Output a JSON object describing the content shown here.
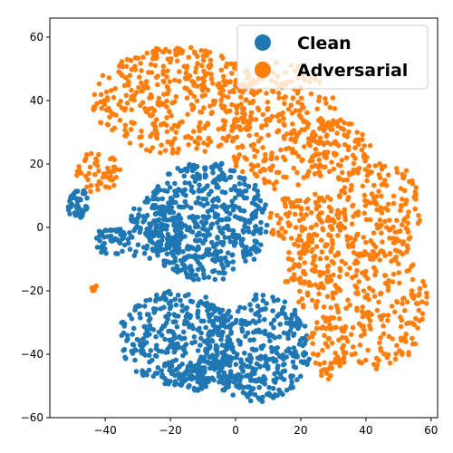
{
  "chart_data": {
    "type": "scatter",
    "title": "",
    "xlabel": "",
    "ylabel": "",
    "xlim": [
      -57,
      62
    ],
    "ylim": [
      -60,
      66
    ],
    "x_ticks": [
      -40,
      -20,
      0,
      20,
      40,
      60
    ],
    "y_ticks": [
      -60,
      -40,
      -20,
      0,
      20,
      40,
      60
    ],
    "x_tick_labels": [
      "−40",
      "−20",
      "0",
      "20",
      "40",
      "60"
    ],
    "y_tick_labels": [
      "−60",
      "−40",
      "−20",
      "0",
      "20",
      "40",
      "60"
    ],
    "grid": false,
    "legend": "top-right",
    "series": [
      {
        "name": "Clean",
        "color": "#1f77b4",
        "clusters": [
          {
            "cx": -9,
            "cy": 2,
            "rx": 19,
            "ry": 19,
            "n": 520
          },
          {
            "cx": -25,
            "cy": -1,
            "rx": 9,
            "ry": 11,
            "n": 120
          },
          {
            "cx": -18,
            "cy": -35,
            "rx": 18,
            "ry": 15,
            "n": 330
          },
          {
            "cx": 7,
            "cy": -38,
            "rx": 16,
            "ry": 17,
            "n": 320
          },
          {
            "cx": -6,
            "cy": -47,
            "rx": 14,
            "ry": 5,
            "n": 110
          },
          {
            "cx": -38,
            "cy": -4,
            "rx": 5,
            "ry": 5,
            "n": 50
          },
          {
            "cx": -48,
            "cy": 7,
            "rx": 3.5,
            "ry": 5,
            "n": 45
          }
        ]
      },
      {
        "name": "Adversarial",
        "color": "#ff7f0e",
        "clusters": [
          {
            "cx": -18,
            "cy": 40,
            "rx": 26,
            "ry": 17,
            "n": 420
          },
          {
            "cx": 14,
            "cy": 32,
            "rx": 18,
            "ry": 20,
            "n": 260
          },
          {
            "cx": 32,
            "cy": 24,
            "rx": 10,
            "ry": 10,
            "n": 90
          },
          {
            "cx": 44,
            "cy": 5,
            "rx": 13,
            "ry": 17,
            "n": 180
          },
          {
            "cx": 44,
            "cy": -25,
            "rx": 15,
            "ry": 20,
            "n": 200
          },
          {
            "cx": 24,
            "cy": -14,
            "rx": 9,
            "ry": 12,
            "n": 110
          },
          {
            "cx": 22,
            "cy": 2,
            "rx": 12,
            "ry": 9,
            "n": 110
          },
          {
            "cx": 28,
            "cy": -38,
            "rx": 6,
            "ry": 10,
            "n": 60
          },
          {
            "cx": -42,
            "cy": 17,
            "rx": 7,
            "ry": 7,
            "n": 50
          },
          {
            "cx": -44,
            "cy": -19,
            "rx": 1.5,
            "ry": 1,
            "n": 6
          }
        ]
      }
    ]
  }
}
